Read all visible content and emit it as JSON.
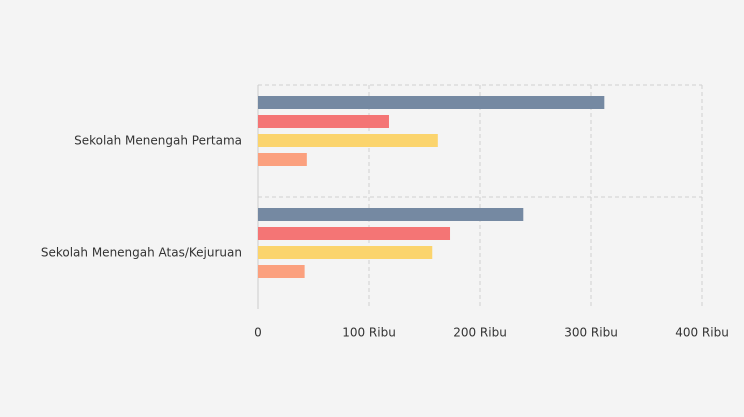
{
  "chart_data": {
    "type": "bar",
    "orientation": "horizontal",
    "categories": [
      "Sekolah Menengah Pertama",
      "Sekolah Menengah Atas/Kejuruan"
    ],
    "series": [
      {
        "color": "#7589a2",
        "values": [
          312000,
          239000
        ]
      },
      {
        "color": "#f47575",
        "values": [
          118000,
          173000
        ]
      },
      {
        "color": "#fbd46d",
        "values": [
          162000,
          157000
        ]
      },
      {
        "color": "#fba07e",
        "values": [
          44000,
          42000
        ]
      }
    ],
    "xlim": [
      0,
      400000
    ],
    "xticks": [
      0,
      {
        "value": 100000,
        "label": "100 Ribu"
      },
      {
        "value": 200000,
        "label": "200 Ribu"
      },
      {
        "value": 300000,
        "label": "300 Ribu"
      },
      {
        "value": 400000,
        "label": "400 Ribu"
      }
    ],
    "grid": true
  }
}
